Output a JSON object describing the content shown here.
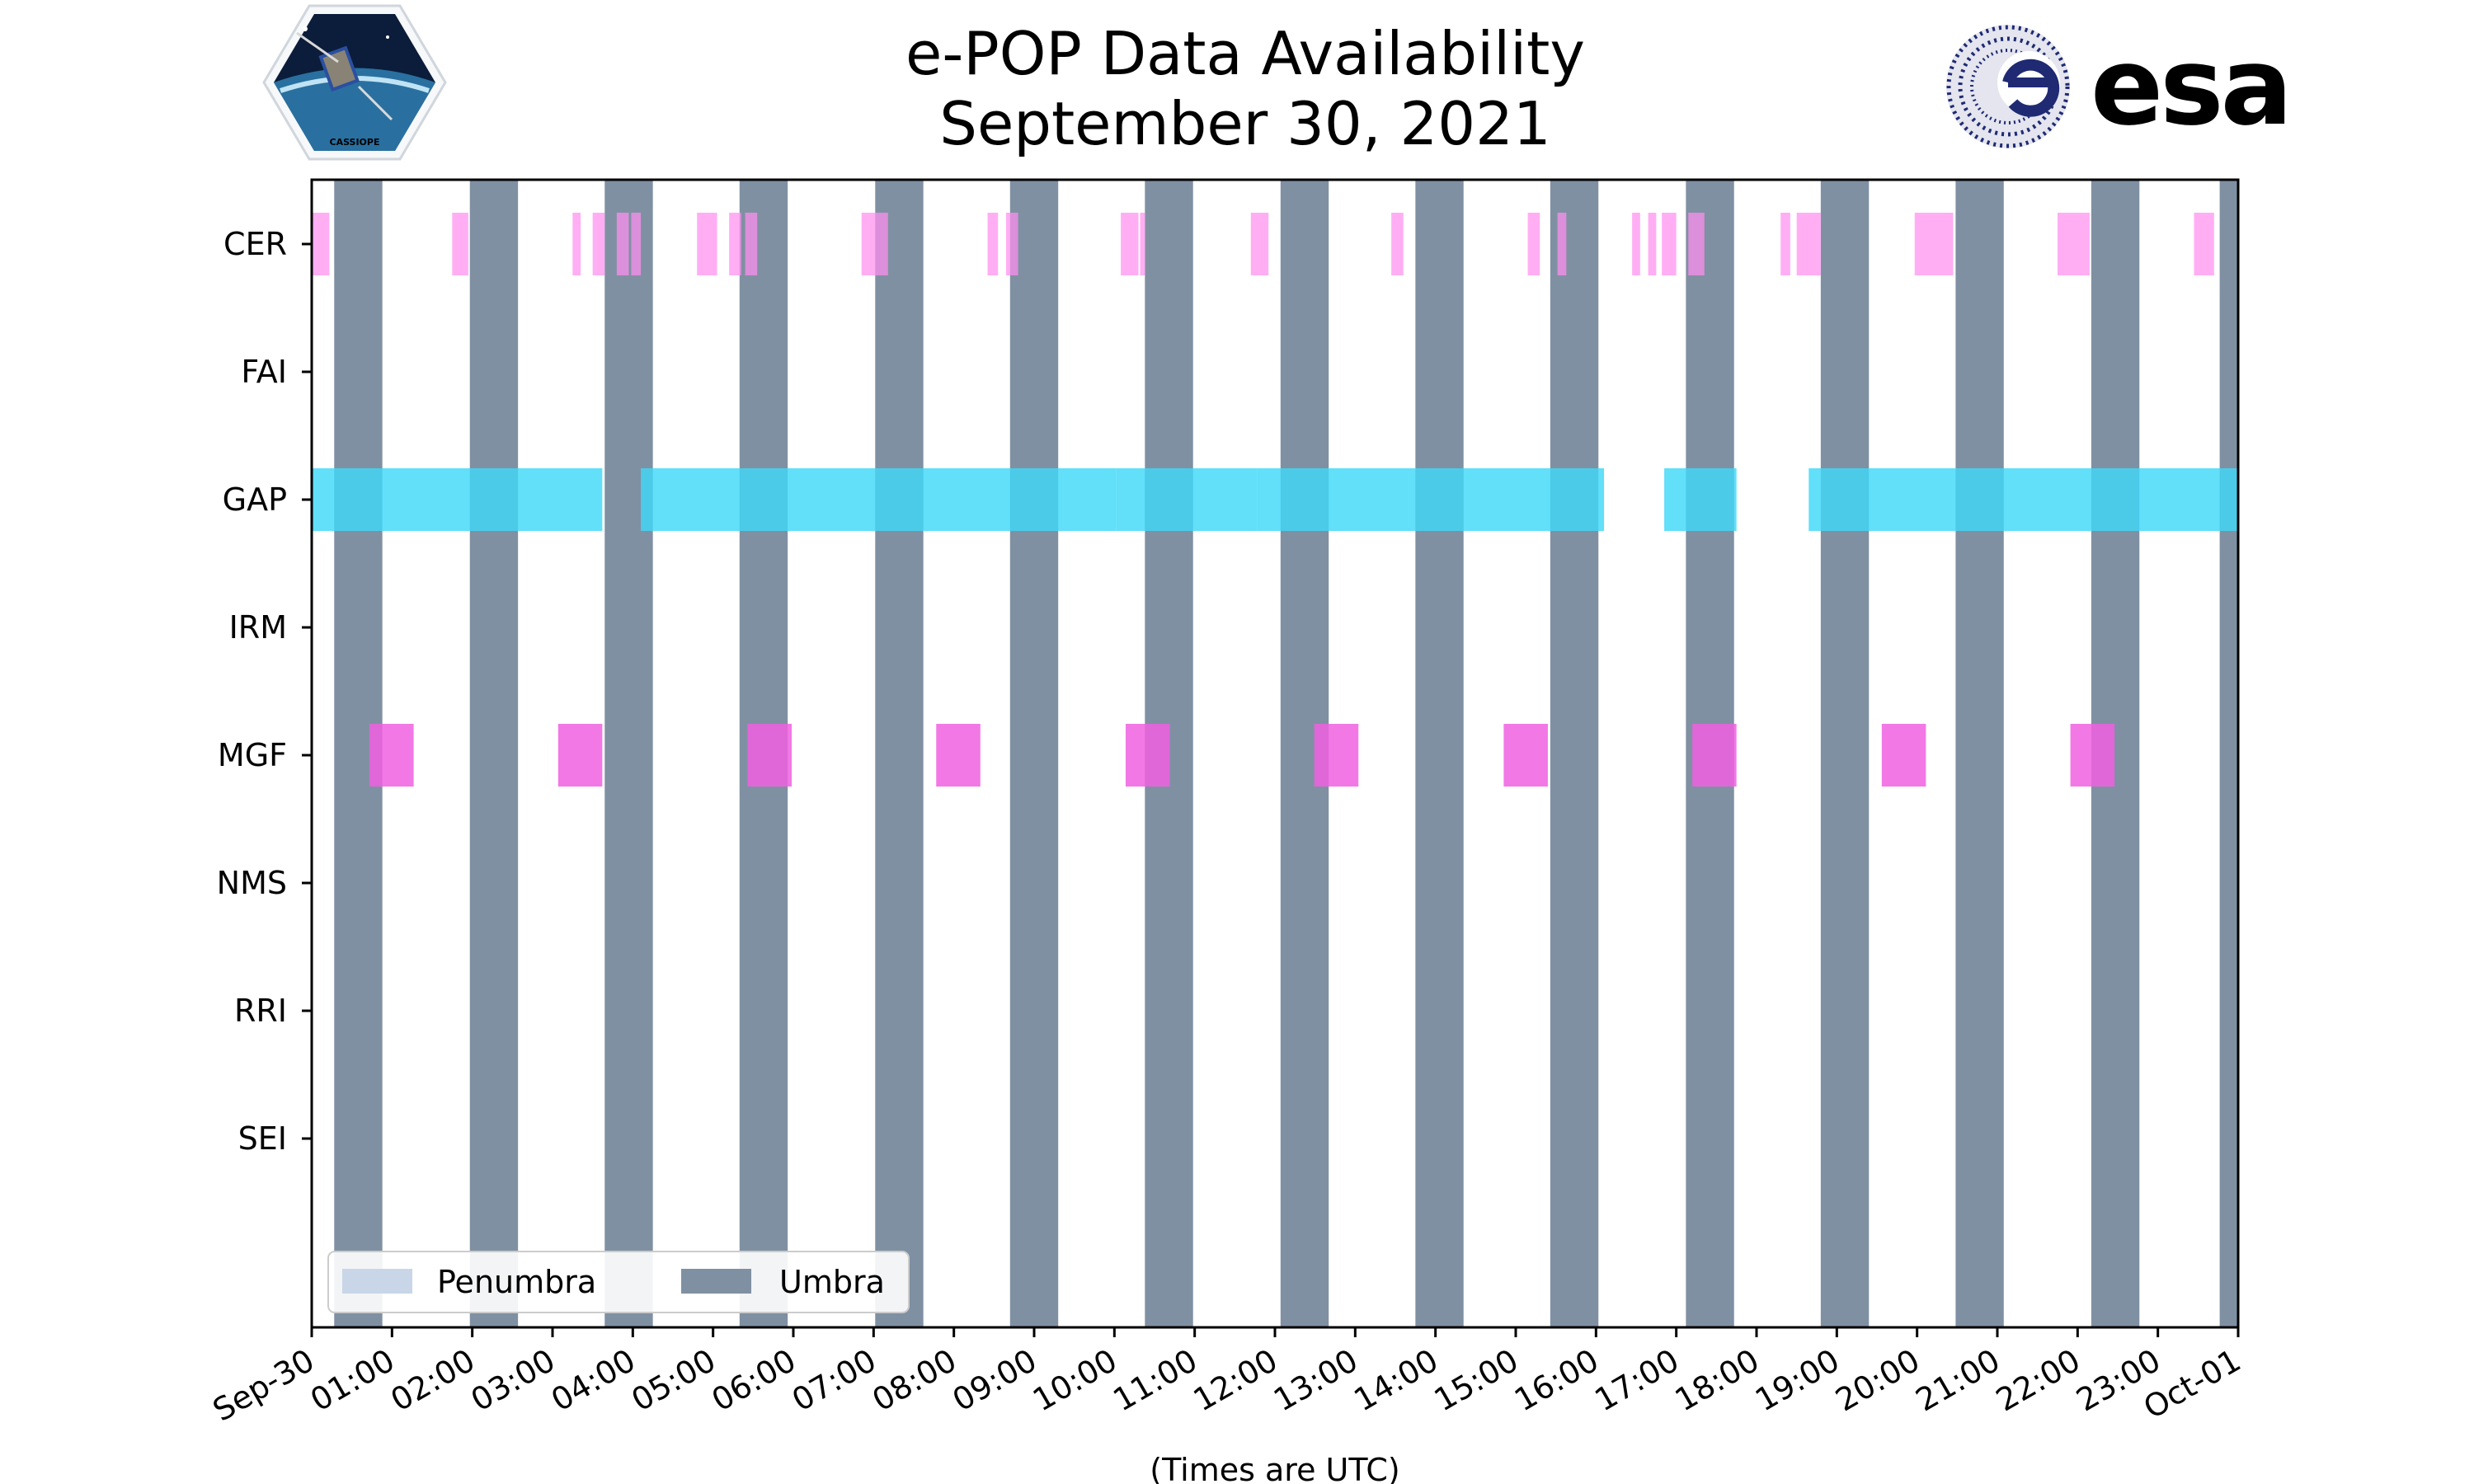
{
  "chart_data": {
    "type": "timeline",
    "title_lines": [
      "e-POP Data Availability",
      "September 30, 2021"
    ],
    "xlabel": "(Times are UTC)",
    "x_unit": "hours since 2021-09-30 00:00 UTC",
    "xlim": [
      0,
      24
    ],
    "x_ticks": [
      {
        "hour": 0,
        "label": "Sep-30"
      },
      {
        "hour": 1,
        "label": "01:00"
      },
      {
        "hour": 2,
        "label": "02:00"
      },
      {
        "hour": 3,
        "label": "03:00"
      },
      {
        "hour": 4,
        "label": "04:00"
      },
      {
        "hour": 5,
        "label": "05:00"
      },
      {
        "hour": 6,
        "label": "06:00"
      },
      {
        "hour": 7,
        "label": "07:00"
      },
      {
        "hour": 8,
        "label": "08:00"
      },
      {
        "hour": 9,
        "label": "09:00"
      },
      {
        "hour": 10,
        "label": "10:00"
      },
      {
        "hour": 11,
        "label": "11:00"
      },
      {
        "hour": 12,
        "label": "12:00"
      },
      {
        "hour": 13,
        "label": "13:00"
      },
      {
        "hour": 14,
        "label": "14:00"
      },
      {
        "hour": 15,
        "label": "15:00"
      },
      {
        "hour": 16,
        "label": "16:00"
      },
      {
        "hour": 17,
        "label": "17:00"
      },
      {
        "hour": 18,
        "label": "18:00"
      },
      {
        "hour": 19,
        "label": "19:00"
      },
      {
        "hour": 20,
        "label": "20:00"
      },
      {
        "hour": 21,
        "label": "21:00"
      },
      {
        "hour": 22,
        "label": "22:00"
      },
      {
        "hour": 23,
        "label": "23:00"
      },
      {
        "hour": 24,
        "label": "Oct-01"
      }
    ],
    "instruments": [
      "CER",
      "FAI",
      "GAP",
      "IRM",
      "MGF",
      "NMS",
      "RRI",
      "SEI"
    ],
    "umbra": [
      [
        0.28,
        0.88
      ],
      [
        1.97,
        2.57
      ],
      [
        3.65,
        4.25
      ],
      [
        5.33,
        5.93
      ],
      [
        7.02,
        7.62
      ],
      [
        8.7,
        9.3
      ],
      [
        10.38,
        10.98
      ],
      [
        12.07,
        12.67
      ],
      [
        13.75,
        14.35
      ],
      [
        15.43,
        16.03
      ],
      [
        17.12,
        17.72
      ],
      [
        18.8,
        19.4
      ],
      [
        20.48,
        21.08
      ],
      [
        22.17,
        22.77
      ],
      [
        23.77,
        24.0
      ]
    ],
    "penumbra": [],
    "series": [
      {
        "name": "CER",
        "color": "#ff8ff0",
        "opacity": 0.72,
        "intervals": [
          [
            0.0,
            0.22
          ],
          [
            1.75,
            1.95
          ],
          [
            3.25,
            3.35
          ],
          [
            3.5,
            3.65
          ],
          [
            3.8,
            3.95
          ],
          [
            3.98,
            4.1
          ],
          [
            4.8,
            5.05
          ],
          [
            5.2,
            5.35
          ],
          [
            5.4,
            5.55
          ],
          [
            6.85,
            7.18
          ],
          [
            8.42,
            8.55
          ],
          [
            8.65,
            8.8
          ],
          [
            10.08,
            10.3
          ],
          [
            10.32,
            10.38
          ],
          [
            11.7,
            11.92
          ],
          [
            13.45,
            13.6
          ],
          [
            15.15,
            15.3
          ],
          [
            15.52,
            15.63
          ],
          [
            16.45,
            16.55
          ],
          [
            16.65,
            16.75
          ],
          [
            16.82,
            17.0
          ],
          [
            17.15,
            17.35
          ],
          [
            18.3,
            18.42
          ],
          [
            18.5,
            18.8
          ],
          [
            19.97,
            20.45
          ],
          [
            21.75,
            22.15
          ],
          [
            23.45,
            23.7
          ]
        ]
      },
      {
        "name": "FAI",
        "color": "#ff8ff0",
        "opacity": 0.72,
        "intervals": []
      },
      {
        "name": "GAP",
        "color": "#40d8f8",
        "opacity": 0.82,
        "intervals": [
          [
            0.0,
            3.62
          ],
          [
            4.1,
            10.02
          ],
          [
            10.02,
            11.78
          ],
          [
            11.78,
            16.1
          ],
          [
            16.85,
            17.75
          ],
          [
            18.65,
            24.0
          ]
        ]
      },
      {
        "name": "IRM",
        "color": "#ff8ff0",
        "opacity": 0.72,
        "intervals": []
      },
      {
        "name": "MGF",
        "color": "#f060e0",
        "opacity": 0.85,
        "intervals": [
          [
            0.72,
            1.27
          ],
          [
            3.07,
            3.62
          ],
          [
            5.43,
            5.98
          ],
          [
            7.78,
            8.33
          ],
          [
            10.14,
            10.69
          ],
          [
            12.49,
            13.04
          ],
          [
            14.85,
            15.4
          ],
          [
            17.2,
            17.75
          ],
          [
            19.56,
            20.11
          ],
          [
            21.91,
            22.46
          ]
        ]
      },
      {
        "name": "NMS",
        "color": "#ff8ff0",
        "opacity": 0.72,
        "intervals": []
      },
      {
        "name": "RRI",
        "color": "#ff8ff0",
        "opacity": 0.72,
        "intervals": []
      },
      {
        "name": "SEI",
        "color": "#ff8ff0",
        "opacity": 0.72,
        "intervals": []
      }
    ],
    "legend": {
      "placement": "lower-left",
      "entries": [
        {
          "label": "Penumbra",
          "color": "#c8d6e8"
        },
        {
          "label": "Umbra",
          "color": "#8090a3"
        }
      ]
    },
    "colors": {
      "umbra": "#8090a3",
      "penumbra": "#c8d6e8",
      "axis": "#000000",
      "background": "#ffffff"
    }
  },
  "logos": {
    "left": {
      "icon": "cassiope-mission-patch",
      "text": "CASSIOPE"
    },
    "right": {
      "icon": "esa-logo",
      "text": "esa",
      "color": "#1f2a73"
    }
  }
}
